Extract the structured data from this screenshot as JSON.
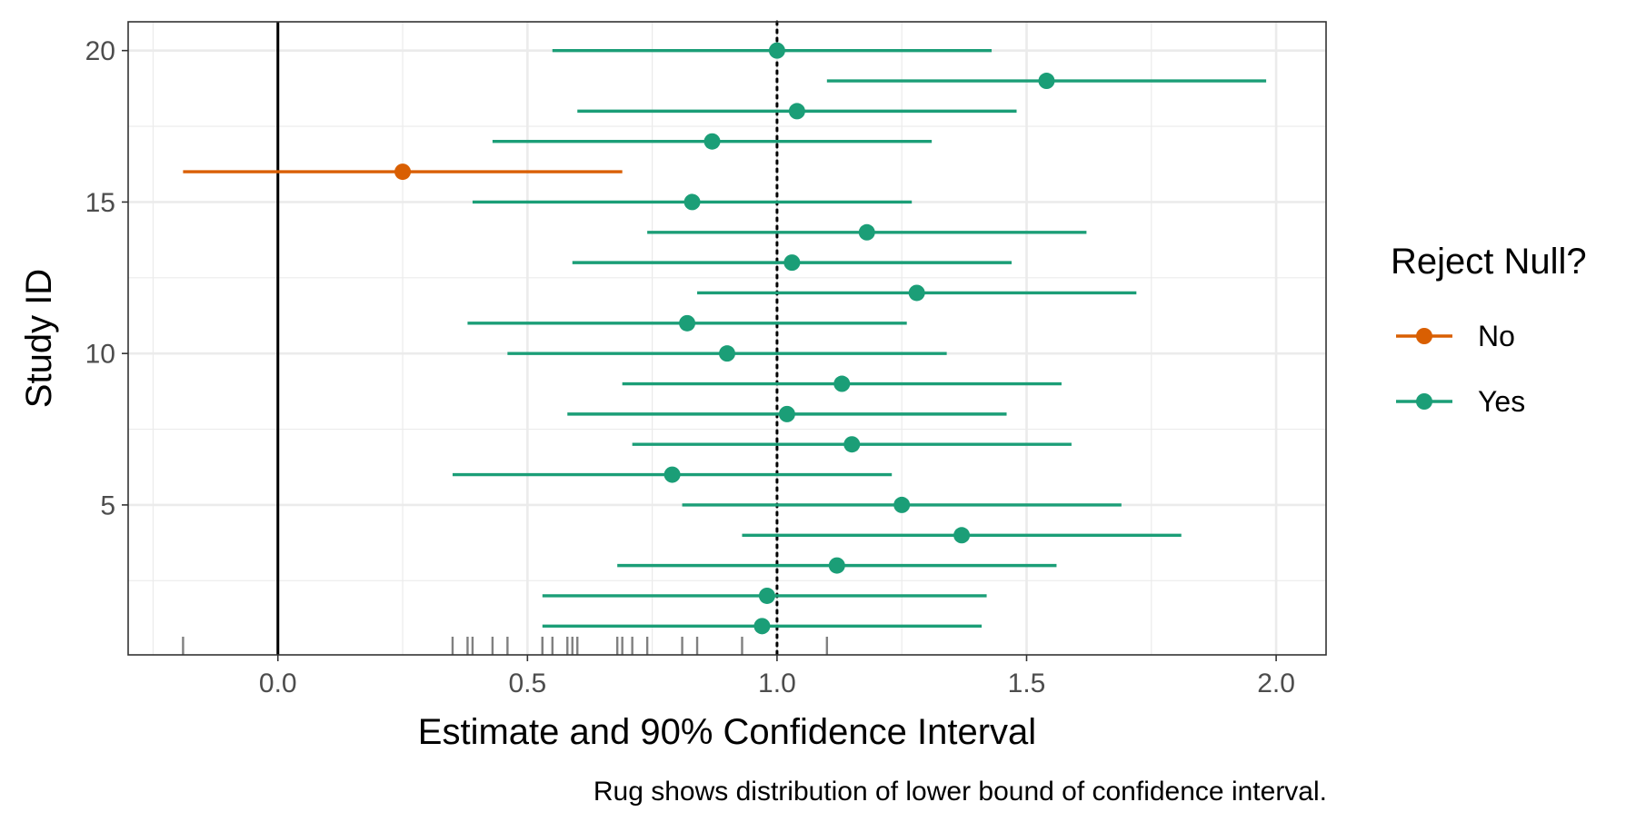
{
  "chart_data": {
    "type": "scatter",
    "subtype": "forest-plot",
    "xlabel": "Estimate and 90% Confidence Interval",
    "ylabel": "Study ID",
    "caption": "Rug shows distribution of lower bound of confidence interval.",
    "xlim": [
      -0.3,
      2.1
    ],
    "ylim": [
      0.05,
      20.95
    ],
    "x_ticks": [
      0.0,
      0.5,
      1.0,
      1.5,
      2.0
    ],
    "x_tick_labels": [
      "0.0",
      "0.5",
      "1.0",
      "1.5",
      "2.0"
    ],
    "y_ticks": [
      5,
      10,
      15,
      20
    ],
    "y_tick_labels": [
      "5",
      "10",
      "15",
      "20"
    ],
    "grid": true,
    "reference_lines": [
      {
        "x": 0.0,
        "style": "solid",
        "color": "#000000"
      },
      {
        "x": 1.0,
        "style": "dotted",
        "color": "#000000"
      }
    ],
    "legend": {
      "title": "Reject Null?",
      "placement": "right",
      "entries": [
        {
          "label": "No",
          "color": "#D95F02"
        },
        {
          "label": "Yes",
          "color": "#1B9E77"
        }
      ]
    },
    "studies": [
      {
        "id": 1,
        "estimate": 0.97,
        "lower": 0.53,
        "upper": 1.41,
        "reject_null": "Yes"
      },
      {
        "id": 2,
        "estimate": 0.98,
        "lower": 0.53,
        "upper": 1.42,
        "reject_null": "Yes"
      },
      {
        "id": 3,
        "estimate": 1.12,
        "lower": 0.68,
        "upper": 1.56,
        "reject_null": "Yes"
      },
      {
        "id": 4,
        "estimate": 1.37,
        "lower": 0.93,
        "upper": 1.81,
        "reject_null": "Yes"
      },
      {
        "id": 5,
        "estimate": 1.25,
        "lower": 0.81,
        "upper": 1.69,
        "reject_null": "Yes"
      },
      {
        "id": 6,
        "estimate": 0.79,
        "lower": 0.35,
        "upper": 1.23,
        "reject_null": "Yes"
      },
      {
        "id": 7,
        "estimate": 1.15,
        "lower": 0.71,
        "upper": 1.59,
        "reject_null": "Yes"
      },
      {
        "id": 8,
        "estimate": 1.02,
        "lower": 0.58,
        "upper": 1.46,
        "reject_null": "Yes"
      },
      {
        "id": 9,
        "estimate": 1.13,
        "lower": 0.69,
        "upper": 1.57,
        "reject_null": "Yes"
      },
      {
        "id": 10,
        "estimate": 0.9,
        "lower": 0.46,
        "upper": 1.34,
        "reject_null": "Yes"
      },
      {
        "id": 11,
        "estimate": 0.82,
        "lower": 0.38,
        "upper": 1.26,
        "reject_null": "Yes"
      },
      {
        "id": 12,
        "estimate": 1.28,
        "lower": 0.84,
        "upper": 1.72,
        "reject_null": "Yes"
      },
      {
        "id": 13,
        "estimate": 1.03,
        "lower": 0.59,
        "upper": 1.47,
        "reject_null": "Yes"
      },
      {
        "id": 14,
        "estimate": 1.18,
        "lower": 0.74,
        "upper": 1.62,
        "reject_null": "Yes"
      },
      {
        "id": 15,
        "estimate": 0.83,
        "lower": 0.39,
        "upper": 1.27,
        "reject_null": "Yes"
      },
      {
        "id": 16,
        "estimate": 0.25,
        "lower": -0.19,
        "upper": 0.69,
        "reject_null": "No"
      },
      {
        "id": 17,
        "estimate": 0.87,
        "lower": 0.43,
        "upper": 1.31,
        "reject_null": "Yes"
      },
      {
        "id": 18,
        "estimate": 1.04,
        "lower": 0.6,
        "upper": 1.48,
        "reject_null": "Yes"
      },
      {
        "id": 19,
        "estimate": 1.54,
        "lower": 1.1,
        "upper": 1.98,
        "reject_null": "Yes"
      },
      {
        "id": 20,
        "estimate": 1.0,
        "lower": 0.55,
        "upper": 1.43,
        "reject_null": "Yes"
      }
    ]
  }
}
